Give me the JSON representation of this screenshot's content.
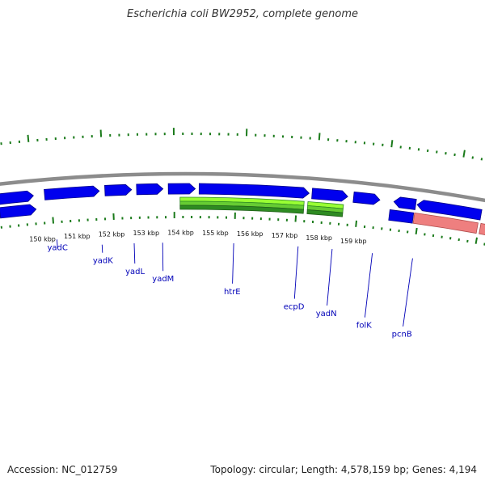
{
  "title": "Escherichia coli BW2952, complete genome",
  "footer": {
    "accession": "Accession: NC_012759",
    "summary": "Topology: circular; Length: 4,578,159 bp; Genes: 4,194"
  },
  "colors": {
    "backbone": "#8c8c8c",
    "cds": "#0000ee",
    "cds_dark": "#00008a",
    "rrna": "#ee7f7f",
    "rrna_dark": "#b04a4a",
    "gc_light": "#99ff33",
    "gc_dark": "#2e8b22",
    "gc_dots": "#1a7a1a",
    "tick": "#1a7a1a",
    "label": "#0000b8"
  },
  "kbp_ticks": [
    "150 kbp",
    "151 kbp",
    "152 kbp",
    "153 kbp",
    "154 kbp",
    "155 kbp",
    "156 kbp",
    "157 kbp",
    "158 kbp",
    "159 kbp"
  ],
  "genes": [
    "yadC",
    "yadK",
    "yadL",
    "yadM",
    "htrE",
    "ecpD",
    "yadN",
    "folK",
    "pcnB"
  ]
}
